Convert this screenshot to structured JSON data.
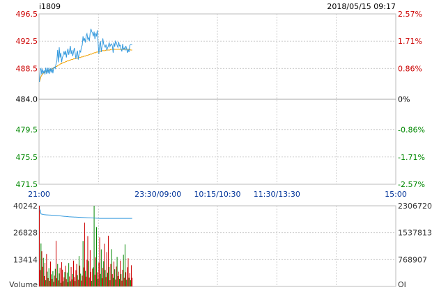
{
  "header": {
    "symbol": "i1809",
    "datetime": "2018/05/15 09:17"
  },
  "colors": {
    "up": "#cc0000",
    "down": "#008800",
    "flat": "#000000",
    "price_line": "#3399dd",
    "avg_line": "#f0a000",
    "oi_line": "#3399dd",
    "grid": "#cccccc",
    "frame": "#bbbbbb"
  },
  "chart_data": [
    {
      "type": "line",
      "panel": "price",
      "base_price": 484.0,
      "ylim": [
        471.5,
        496.5
      ],
      "y_ticks_left": [
        {
          "label": "496.5",
          "value": 496.5,
          "dir": "up"
        },
        {
          "label": "492.5",
          "value": 492.5,
          "dir": "up"
        },
        {
          "label": "488.5",
          "value": 488.5,
          "dir": "up"
        },
        {
          "label": "484.0",
          "value": 484.0,
          "dir": "flat"
        },
        {
          "label": "479.5",
          "value": 479.5,
          "dir": "down"
        },
        {
          "label": "475.5",
          "value": 475.5,
          "dir": "down"
        },
        {
          "label": "471.5",
          "value": 471.5,
          "dir": "down"
        }
      ],
      "y_ticks_right": [
        {
          "label": "2.57%",
          "value": 496.5,
          "dir": "up"
        },
        {
          "label": "1.71%",
          "value": 492.5,
          "dir": "up"
        },
        {
          "label": "0.86%",
          "value": 488.5,
          "dir": "up"
        },
        {
          "label": "0%",
          "value": 484.0,
          "dir": "flat"
        },
        {
          "label": "-0.86%",
          "value": 479.5,
          "dir": "down"
        },
        {
          "label": "-1.71%",
          "value": 475.5,
          "dir": "down"
        },
        {
          "label": "-2.57%",
          "value": 471.5,
          "dir": "down"
        }
      ],
      "x_ticks": [
        {
          "label": "21:00",
          "pos": 0.0
        },
        {
          "label": "23:30/09:00",
          "pos": 0.3333
        },
        {
          "label": "10:15/10:30",
          "pos": 0.5
        },
        {
          "label": "11:30/13:30",
          "pos": 0.6667
        },
        {
          "label": "15:00",
          "pos": 1.0
        }
      ],
      "vertical_grid_fractions": [
        0.1667,
        0.3333,
        0.5,
        0.6667,
        0.8333
      ],
      "series": [
        {
          "values": [
            486.5,
            488.3,
            488.5,
            487.6,
            488.4,
            487.8,
            488.2,
            487.6,
            488.6,
            487.7,
            488.6,
            487.8,
            488.6,
            487.7,
            488.5,
            487.9,
            488.6,
            487.8,
            488.6,
            488.7,
            488.5,
            489.2,
            489.6,
            491.2,
            489.4,
            491.6,
            490.1,
            490.8,
            489.4,
            490.1,
            490.4,
            491.0,
            490.5,
            491.1,
            490.1,
            490.9,
            491.4,
            490.5,
            491.1,
            491.8,
            490.6,
            491.2,
            490.3,
            490.9,
            491.5,
            490.8,
            489.9,
            490.7,
            491.1,
            489.8,
            490.6,
            491.1,
            490.9,
            491.7,
            491.9,
            493.2,
            492.5,
            492.9,
            492.3,
            493.3,
            493.6,
            492.8,
            493.0,
            492.5,
            493.7,
            494.3,
            493.9,
            493.7,
            493.2,
            493.9,
            492.8,
            493.6,
            493.3,
            494.1,
            492.3,
            490.6,
            492.0,
            492.5,
            490.9,
            491.8,
            492.9,
            492.1,
            491.8,
            491.6,
            492.0,
            491.2,
            491.5,
            491.8,
            492.3,
            491.7,
            492.0,
            492.1,
            491.8,
            490.8,
            492.3,
            491.7,
            492.5,
            492.3,
            491.9,
            491.6,
            492.4,
            491.8,
            491.9,
            491.3,
            491.0,
            492.1,
            491.3,
            491.5,
            491.2,
            491.8,
            491.4,
            490.8,
            491.3,
            490.9,
            491.9,
            492.0,
            492.0,
            492.0
          ]
        },
        {
          "values": [
            486.5,
            486.9,
            487.3,
            487.5,
            487.7,
            487.8,
            487.9,
            487.9,
            488.0,
            488.1,
            488.1,
            488.2,
            488.2,
            488.3,
            488.3,
            488.4,
            488.4,
            488.5,
            488.6,
            488.6,
            488.7,
            488.8,
            488.8,
            488.9,
            489.0,
            489.0,
            489.1,
            489.2,
            489.2,
            489.3,
            489.3,
            489.4,
            489.4,
            489.5,
            489.5,
            489.6,
            489.6,
            489.6,
            489.7,
            489.7,
            489.8,
            489.8,
            489.8,
            489.9,
            489.9,
            489.9,
            490.0,
            490.0,
            490.0,
            490.0,
            490.1,
            490.1,
            490.1,
            490.2,
            490.2,
            490.2,
            490.3,
            490.3,
            490.3,
            490.4,
            490.4,
            490.4,
            490.5,
            490.5,
            490.6,
            490.6,
            490.6,
            490.7,
            490.7,
            490.8,
            490.8,
            490.8,
            490.9,
            490.9,
            490.9,
            491.0,
            491.0,
            491.0,
            491.0,
            491.1,
            491.1,
            491.1,
            491.1,
            491.1,
            491.2,
            491.2,
            491.2,
            491.2,
            491.2,
            491.2,
            491.3,
            491.3,
            491.3,
            491.3,
            491.3,
            491.3,
            491.3,
            491.3,
            491.3,
            491.3,
            491.3,
            491.3,
            491.3,
            491.3,
            491.3,
            491.3,
            491.3,
            491.3,
            491.3,
            491.3,
            491.3,
            491.3,
            491.3,
            491.3,
            491.3,
            491.2,
            491.2,
            491.2
          ]
        }
      ],
      "points_total_session": 450
    },
    {
      "type": "bar",
      "panel": "volume",
      "ylim": [
        0,
        40242
      ],
      "y_ticks_left": [
        {
          "label": "40242",
          "value": 40242
        },
        {
          "label": "26828",
          "value": 26828
        },
        {
          "label": "13414",
          "value": 13414
        },
        {
          "label": "Volume",
          "value": 0
        }
      ],
      "y_ticks_right": [
        {
          "label": "2306720",
          "value": 40242
        },
        {
          "label": "1537813",
          "value": 26828
        },
        {
          "label": "768907",
          "value": 13414
        },
        {
          "label": "OI",
          "value": 0
        }
      ],
      "values": [
        40242,
        8200,
        21400,
        17600,
        9800,
        14300,
        5200,
        11800,
        3100,
        16200,
        7400,
        4200,
        9100,
        2800,
        12400,
        6100,
        3800,
        7600,
        2300,
        5400,
        8800,
        22700,
        4100,
        11200,
        3000,
        6500,
        9300,
        1800,
        12100,
        8400,
        2600,
        4500,
        7200,
        10300,
        3700,
        6900,
        2100,
        11700,
        5000,
        2600,
        9700,
        3500,
        6300,
        12900,
        4700,
        2700,
        8100,
        11200,
        5600,
        3300,
        15200,
        10400,
        6400,
        2900,
        5400,
        22600,
        9500,
        31800,
        7800,
        4900,
        13300,
        25100,
        12700,
        4400,
        18100,
        7300,
        2800,
        8900,
        9600,
        40242,
        5800,
        14500,
        29600,
        7100,
        3800,
        11900,
        24500,
        6300,
        18500,
        4100,
        9300,
        12600,
        21300,
        8200,
        4700,
        17100,
        6800,
        25300,
        9700,
        3100,
        11200,
        18600,
        6200,
        4300,
        12400,
        8600,
        3400,
        9900,
        14700,
        5200,
        7400,
        3800,
        12900,
        6200,
        2900,
        8300,
        15800,
        4300,
        21000,
        7100,
        3300,
        9600,
        14100,
        4300,
        6600,
        3100,
        10600,
        4300
      ],
      "directions": [
        "up",
        "up",
        "down",
        "up",
        "up",
        "down",
        "up",
        "up",
        "down",
        "up",
        "down",
        "up",
        "down",
        "up",
        "up",
        "down",
        "up",
        "down",
        "up",
        "up",
        "down",
        "up",
        "up",
        "down",
        "up",
        "down",
        "up",
        "down",
        "up",
        "up",
        "down",
        "up",
        "down",
        "up",
        "up",
        "down",
        "up",
        "down",
        "up",
        "down",
        "up",
        "up",
        "down",
        "up",
        "up",
        "down",
        "up",
        "up",
        "down",
        "up",
        "down",
        "up",
        "down",
        "up",
        "up",
        "down",
        "up",
        "up",
        "down",
        "up",
        "up",
        "up",
        "down",
        "up",
        "up",
        "up",
        "down",
        "up",
        "down",
        "down",
        "up",
        "up",
        "down",
        "up",
        "down",
        "up",
        "up",
        "down",
        "down",
        "up",
        "up",
        "down",
        "up",
        "down",
        "up",
        "up",
        "down",
        "up",
        "down",
        "up",
        "up",
        "down",
        "up",
        "down",
        "up",
        "down",
        "up",
        "up",
        "down",
        "up",
        "up",
        "down",
        "up",
        "down",
        "up",
        "up",
        "down",
        "up",
        "down",
        "up",
        "down",
        "up",
        "up",
        "down",
        "up",
        "down",
        "up",
        "up"
      ]
    },
    {
      "type": "line",
      "panel": "open_interest",
      "ylim": [
        0,
        2306720
      ],
      "series": [
        {
          "values": [
            2306720,
            2306720,
            2210000,
            2205000,
            2200000,
            2195000,
            2192000,
            2190000,
            2188000,
            2186000,
            2185000,
            2184000,
            2183000,
            2182000,
            2181000,
            2180000,
            2179000,
            2178000,
            2177000,
            2176000,
            2174000,
            2172000,
            2170000,
            2168000,
            2166000,
            2164000,
            2162000,
            2160000,
            2158000,
            2156000,
            2154000,
            2152000,
            2150000,
            2148000,
            2146000,
            2144000,
            2142000,
            2140000,
            2139000,
            2138000,
            2137000,
            2136000,
            2135000,
            2134000,
            2133000,
            2132000,
            2131000,
            2130000,
            2129000,
            2128000,
            2127000,
            2126000,
            2125000,
            2124000,
            2123000,
            2122000,
            2121000,
            2120000,
            2119000,
            2118000,
            2117000,
            2116000,
            2115000,
            2114000,
            2113000,
            2112000,
            2111000,
            2110000,
            2109000,
            2108000,
            2107000,
            2106000,
            2105000,
            2104000,
            2103000,
            2102000,
            2101000,
            2100000,
            2100000,
            2100000,
            2100000,
            2100000,
            2100000,
            2100000,
            2100000,
            2100000,
            2100000,
            2100000,
            2100000,
            2100000,
            2100000,
            2100000,
            2100000,
            2100000,
            2100000,
            2100000,
            2100000,
            2100000,
            2100000,
            2100000,
            2100000,
            2100000,
            2100000,
            2100000,
            2100000,
            2100000,
            2100000,
            2100000,
            2100000,
            2100000,
            2100000,
            2100000,
            2100000,
            2100000,
            2100000,
            2100000,
            2100000,
            2100000
          ]
        }
      ]
    }
  ]
}
